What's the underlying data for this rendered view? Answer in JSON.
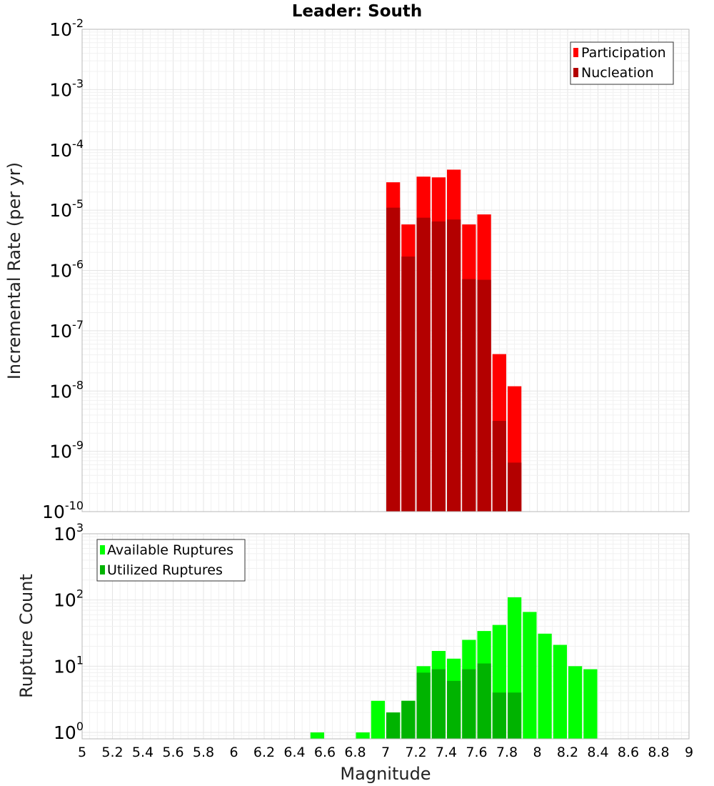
{
  "chart_data": [
    {
      "type": "bar",
      "scale": "log",
      "title": "Leader: South",
      "xlabel": "",
      "ylabel": "Incremental Rate (per yr)",
      "xlim": [
        5,
        9
      ],
      "ylim": [
        1e-10,
        0.01
      ],
      "bin_width": 0.1,
      "legend_position": "top-right",
      "series": [
        {
          "name": "Participation",
          "color": "#ff0000",
          "x": [
            7.05,
            7.15,
            7.25,
            7.35,
            7.45,
            7.55,
            7.65,
            7.75,
            7.85
          ],
          "values": [
            2.9e-05,
            5.8e-06,
            3.6e-05,
            3.5e-05,
            4.7e-05,
            5.8e-06,
            8.5e-06,
            4.1e-08,
            1.2e-08
          ]
        },
        {
          "name": "Nucleation",
          "color": "#b30000",
          "x": [
            7.05,
            7.15,
            7.25,
            7.35,
            7.45,
            7.55,
            7.65,
            7.75,
            7.85
          ],
          "values": [
            1.1e-05,
            1.7e-06,
            7.5e-06,
            6.5e-06,
            7e-06,
            7.2e-07,
            7e-07,
            3.2e-09,
            6.5e-10
          ]
        }
      ]
    },
    {
      "type": "bar",
      "scale": "log",
      "title": "",
      "xlabel": "Magnitude",
      "ylabel": "Rupture Count",
      "xlim": [
        5,
        9
      ],
      "ylim": [
        0.8,
        1000
      ],
      "bin_width": 0.1,
      "legend_position": "top-left",
      "series": [
        {
          "name": "Available Ruptures",
          "color": "#00ff00",
          "x": [
            6.55,
            6.85,
            6.95,
            7.05,
            7.15,
            7.25,
            7.35,
            7.45,
            7.55,
            7.65,
            7.75,
            7.85,
            7.95,
            8.05,
            8.15,
            8.25,
            8.35
          ],
          "values": [
            1,
            1,
            3,
            2,
            3,
            10,
            17,
            13,
            25,
            34,
            42,
            110,
            66,
            31,
            21,
            10,
            9
          ]
        },
        {
          "name": "Utilized Ruptures",
          "color": "#00b300",
          "x": [
            7.05,
            7.15,
            7.25,
            7.35,
            7.45,
            7.55,
            7.65,
            7.75,
            7.85
          ],
          "values": [
            2,
            3,
            8,
            9,
            6,
            9,
            11,
            4,
            4
          ]
        }
      ]
    }
  ],
  "x_ticks": [
    "5",
    "5.2",
    "5.4",
    "5.6",
    "5.8",
    "6",
    "6.2",
    "6.4",
    "6.6",
    "6.8",
    "7",
    "7.2",
    "7.4",
    "7.6",
    "7.8",
    "8",
    "8.2",
    "8.4",
    "8.6",
    "8.8",
    "9"
  ],
  "top_y_ticks": [
    {
      "base": "10",
      "exp": "-2",
      "value": 0.01
    },
    {
      "base": "10",
      "exp": "-3",
      "value": 0.001
    },
    {
      "base": "10",
      "exp": "-4",
      "value": 0.0001
    },
    {
      "base": "10",
      "exp": "-5",
      "value": 1e-05
    },
    {
      "base": "10",
      "exp": "-6",
      "value": 1e-06
    },
    {
      "base": "10",
      "exp": "-7",
      "value": 1e-07
    },
    {
      "base": "10",
      "exp": "-8",
      "value": 1e-08
    },
    {
      "base": "10",
      "exp": "-9",
      "value": 1e-09
    },
    {
      "base": "10",
      "exp": "-10",
      "value": 1e-10
    }
  ],
  "bottom_y_ticks": [
    {
      "base": "10",
      "exp": "3",
      "value": 1000
    },
    {
      "base": "10",
      "exp": "2",
      "value": 100
    },
    {
      "base": "10",
      "exp": "1",
      "value": 10
    },
    {
      "base": "10",
      "exp": "0",
      "value": 1
    }
  ]
}
